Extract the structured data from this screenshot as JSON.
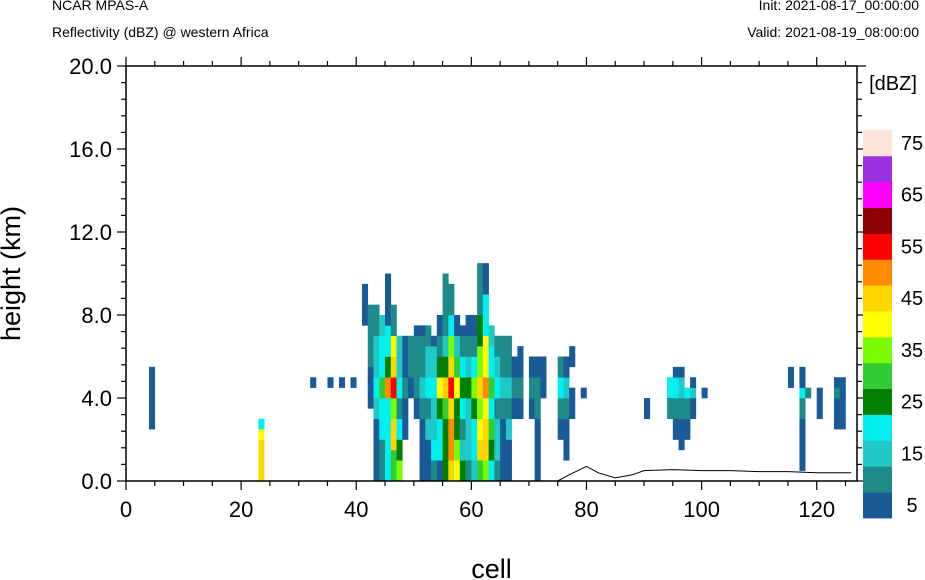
{
  "header": {
    "left_top": "NCAR MPAS-A",
    "left_bottom": "Reflectivity (dBZ) @ western Africa",
    "right_top": "Init: 2021-08-17_00:00:00",
    "right_bottom": "Valid: 2021-08-19_08:00:00"
  },
  "colors": {
    "palette": [
      "#1a5a96",
      "#1f8a8a",
      "#20c8c8",
      "#00f0f0",
      "#008000",
      "#32cd32",
      "#7cfc00",
      "#ffff00",
      "#ffd700",
      "#ff8c00",
      "#ff0000",
      "#8b0000",
      "#ff00ff",
      "#9b30e0",
      "#ffe4dc"
    ]
  },
  "chart_data": {
    "type": "heatmap",
    "title": "Reflectivity (dBZ) @ western Africa",
    "xlabel": "cell",
    "ylabel": "height (km)",
    "xlim": [
      0,
      127
    ],
    "ylim": [
      0,
      20
    ],
    "x_ticks": [
      "0",
      "20",
      "40",
      "60",
      "80",
      "100",
      "120"
    ],
    "y_ticks": [
      "0.0",
      "4.0",
      "8.0",
      "12.0",
      "16.0",
      "20.0"
    ],
    "colorbar": {
      "unit_label": "[dBZ]",
      "levels": [
        5,
        10,
        15,
        20,
        25,
        30,
        35,
        40,
        45,
        50,
        55,
        60,
        65,
        70,
        75
      ],
      "tick_labels": [
        "5",
        "15",
        "25",
        "35",
        "45",
        "55",
        "65",
        "75"
      ]
    },
    "terrain": [
      [
        0,
        0
      ],
      [
        75,
        0
      ],
      [
        77,
        0.3
      ],
      [
        80,
        0.7
      ],
      [
        82,
        0.4
      ],
      [
        85,
        0.15
      ],
      [
        88,
        0.3
      ],
      [
        90,
        0.5
      ],
      [
        95,
        0.55
      ],
      [
        100,
        0.5
      ],
      [
        105,
        0.5
      ],
      [
        110,
        0.45
      ],
      [
        115,
        0.45
      ],
      [
        120,
        0.4
      ],
      [
        126,
        0.4
      ]
    ],
    "cells": [
      [
        4,
        2.5,
        3.5,
        5
      ],
      [
        4,
        3.5,
        4.5,
        5
      ],
      [
        4,
        4.5,
        5.5,
        5
      ],
      [
        23,
        0,
        2,
        45
      ],
      [
        23,
        2,
        2.5,
        40
      ],
      [
        23,
        2.5,
        3,
        20
      ],
      [
        32,
        4.5,
        5,
        5
      ],
      [
        35,
        4.5,
        5,
        5
      ],
      [
        37,
        4.5,
        5,
        5
      ],
      [
        39,
        4.5,
        5,
        5
      ],
      [
        41,
        7.5,
        9.5,
        5
      ],
      [
        42,
        5.5,
        8.5,
        10
      ],
      [
        42,
        3.5,
        5.5,
        5
      ],
      [
        43,
        0,
        3,
        5
      ],
      [
        43,
        3,
        4,
        15
      ],
      [
        43,
        4,
        5,
        20
      ],
      [
        43,
        5,
        7,
        15
      ],
      [
        43,
        7,
        8.5,
        10
      ],
      [
        44,
        0,
        2,
        10
      ],
      [
        44,
        2,
        4,
        20
      ],
      [
        44,
        4,
        5,
        30
      ],
      [
        44,
        5,
        7,
        20
      ],
      [
        44,
        7,
        8,
        15
      ],
      [
        45,
        0,
        1.5,
        20
      ],
      [
        45,
        1.5,
        4,
        20
      ],
      [
        45,
        4,
        5,
        50
      ],
      [
        45,
        5,
        6,
        25
      ],
      [
        45,
        6,
        7.5,
        20
      ],
      [
        45,
        7.5,
        10,
        5
      ],
      [
        46,
        0,
        1.5,
        30
      ],
      [
        46,
        1.5,
        3,
        45
      ],
      [
        46,
        3,
        4,
        35
      ],
      [
        46,
        4,
        5,
        55
      ],
      [
        46,
        5,
        6,
        45
      ],
      [
        46,
        6,
        7,
        40
      ],
      [
        46,
        7,
        8.5,
        10
      ],
      [
        47,
        0,
        1,
        35
      ],
      [
        47,
        1,
        2,
        25
      ],
      [
        47,
        2,
        3,
        20
      ],
      [
        47,
        3,
        4,
        10
      ],
      [
        47,
        4,
        5,
        20
      ],
      [
        47,
        5,
        7,
        15
      ],
      [
        48,
        2,
        4,
        5
      ],
      [
        48,
        4,
        5,
        10
      ],
      [
        48,
        5,
        7,
        5
      ],
      [
        49,
        4,
        5,
        5
      ],
      [
        49,
        5,
        7,
        10
      ],
      [
        50,
        3,
        4,
        5
      ],
      [
        50,
        4,
        5,
        10
      ],
      [
        50,
        5,
        7,
        10
      ],
      [
        50,
        7,
        7.5,
        5
      ],
      [
        51,
        0,
        3,
        5
      ],
      [
        51,
        3,
        4,
        10
      ],
      [
        51,
        4,
        5,
        15
      ],
      [
        51,
        5,
        7,
        10
      ],
      [
        51,
        7,
        7.5,
        5
      ],
      [
        52,
        0,
        2,
        5
      ],
      [
        52,
        2,
        3,
        15
      ],
      [
        52,
        3,
        4,
        10
      ],
      [
        52,
        4,
        5,
        20
      ],
      [
        52,
        5,
        6.5,
        15
      ],
      [
        52,
        6.5,
        7.5,
        10
      ],
      [
        53,
        0,
        1,
        10
      ],
      [
        53,
        1,
        2,
        20
      ],
      [
        53,
        2,
        4,
        15
      ],
      [
        53,
        4,
        5,
        20
      ],
      [
        53,
        5,
        6.5,
        15
      ],
      [
        53,
        6.5,
        7,
        5
      ],
      [
        54,
        0,
        1,
        5
      ],
      [
        54,
        1,
        3,
        20
      ],
      [
        54,
        3,
        4,
        25
      ],
      [
        54,
        4,
        5,
        40
      ],
      [
        54,
        5,
        6,
        25
      ],
      [
        54,
        6,
        7,
        10
      ],
      [
        54,
        7,
        8,
        5
      ],
      [
        55,
        0,
        1,
        25
      ],
      [
        55,
        1,
        3,
        25
      ],
      [
        55,
        3,
        4,
        30
      ],
      [
        55,
        4,
        5,
        45
      ],
      [
        55,
        5,
        6,
        25
      ],
      [
        55,
        6,
        7,
        15
      ],
      [
        55,
        7,
        10,
        10
      ],
      [
        56,
        0,
        1,
        45
      ],
      [
        56,
        1,
        3,
        50
      ],
      [
        56,
        3,
        4,
        45
      ],
      [
        56,
        4,
        5,
        55
      ],
      [
        56,
        5,
        6,
        45
      ],
      [
        56,
        6,
        7,
        35
      ],
      [
        56,
        7,
        8,
        20
      ],
      [
        56,
        8,
        9.5,
        10
      ],
      [
        57,
        0,
        1,
        40
      ],
      [
        57,
        1,
        2,
        35
      ],
      [
        57,
        2,
        4,
        25
      ],
      [
        57,
        4,
        5,
        40
      ],
      [
        57,
        5,
        6,
        30
      ],
      [
        57,
        6,
        7,
        15
      ],
      [
        57,
        7,
        8,
        5
      ],
      [
        58,
        0,
        1,
        25
      ],
      [
        58,
        1,
        2,
        15
      ],
      [
        58,
        2,
        3,
        10
      ],
      [
        58,
        3,
        4,
        20
      ],
      [
        58,
        4,
        5,
        25
      ],
      [
        58,
        5,
        6,
        20
      ],
      [
        58,
        6,
        7,
        10
      ],
      [
        58,
        7,
        7.5,
        5
      ],
      [
        59,
        0,
        1,
        10
      ],
      [
        59,
        1,
        3,
        15
      ],
      [
        59,
        3,
        4,
        15
      ],
      [
        59,
        4,
        5,
        25
      ],
      [
        59,
        5,
        6,
        15
      ],
      [
        59,
        6,
        7,
        10
      ],
      [
        59,
        7,
        8,
        5
      ],
      [
        60,
        0,
        1,
        15
      ],
      [
        60,
        1,
        3,
        20
      ],
      [
        60,
        3,
        4,
        25
      ],
      [
        60,
        4,
        5,
        35
      ],
      [
        60,
        5,
        6,
        20
      ],
      [
        60,
        6,
        7,
        10
      ],
      [
        60,
        7,
        8,
        5
      ],
      [
        61,
        0,
        1,
        30
      ],
      [
        61,
        1,
        2,
        45
      ],
      [
        61,
        2,
        3,
        40
      ],
      [
        61,
        3,
        4,
        35
      ],
      [
        61,
        4,
        5,
        45
      ],
      [
        61,
        5,
        6.5,
        35
      ],
      [
        61,
        6.5,
        8,
        25
      ],
      [
        61,
        8,
        10.5,
        10
      ],
      [
        62,
        0,
        1,
        35
      ],
      [
        62,
        1,
        3,
        45
      ],
      [
        62,
        3,
        4,
        40
      ],
      [
        62,
        4,
        5,
        50
      ],
      [
        62,
        5,
        7,
        40
      ],
      [
        62,
        7,
        9,
        20
      ],
      [
        62,
        9,
        10.5,
        5
      ],
      [
        63,
        0,
        1,
        20
      ],
      [
        63,
        1,
        2,
        25
      ],
      [
        63,
        2,
        3,
        30
      ],
      [
        63,
        3,
        4,
        20
      ],
      [
        63,
        4,
        5,
        30
      ],
      [
        63,
        5,
        6.5,
        20
      ],
      [
        63,
        6.5,
        7.5,
        15
      ],
      [
        64,
        0,
        1,
        10
      ],
      [
        64,
        1,
        3,
        15
      ],
      [
        64,
        3,
        4,
        10
      ],
      [
        64,
        4,
        5,
        20
      ],
      [
        64,
        5,
        6,
        15
      ],
      [
        64,
        6,
        7,
        10
      ],
      [
        65,
        0,
        3,
        5
      ],
      [
        65,
        3,
        4,
        10
      ],
      [
        65,
        4,
        5,
        15
      ],
      [
        65,
        5,
        7,
        10
      ],
      [
        66,
        0,
        2,
        5
      ],
      [
        66,
        2,
        3,
        15
      ],
      [
        66,
        3,
        4,
        10
      ],
      [
        66,
        4,
        5,
        15
      ],
      [
        66,
        5,
        7,
        10
      ],
      [
        67,
        3,
        4,
        5
      ],
      [
        67,
        4,
        5,
        10
      ],
      [
        67,
        5,
        6,
        5
      ],
      [
        68,
        3,
        4,
        5
      ],
      [
        68,
        4,
        5,
        10
      ],
      [
        68,
        5,
        6.5,
        5
      ],
      [
        70,
        3,
        4,
        5
      ],
      [
        70,
        4,
        5,
        10
      ],
      [
        70,
        5,
        6,
        5
      ],
      [
        71,
        0,
        3,
        5
      ],
      [
        71,
        3,
        4,
        10
      ],
      [
        71,
        4,
        5,
        10
      ],
      [
        71,
        5,
        6,
        5
      ],
      [
        72,
        4,
        4.5,
        5
      ],
      [
        72,
        4.5,
        6,
        5
      ],
      [
        75,
        2,
        3,
        5
      ],
      [
        75,
        3,
        4,
        10
      ],
      [
        75,
        4,
        5,
        20
      ],
      [
        75,
        5,
        6,
        10
      ],
      [
        76,
        1,
        3,
        5
      ],
      [
        76,
        3,
        4,
        10
      ],
      [
        76,
        4,
        5,
        15
      ],
      [
        76,
        5,
        6,
        5
      ],
      [
        77,
        3,
        4.5,
        5
      ],
      [
        77,
        5.5,
        6.5,
        5
      ],
      [
        79,
        4,
        4.5,
        5
      ],
      [
        90,
        3,
        4,
        5
      ],
      [
        94,
        4,
        5,
        20
      ],
      [
        94,
        3,
        4,
        10
      ],
      [
        95,
        2,
        3,
        5
      ],
      [
        95,
        3,
        4,
        10
      ],
      [
        95,
        4,
        5,
        20
      ],
      [
        95,
        5,
        5.5,
        5
      ],
      [
        96,
        1.5,
        3,
        5
      ],
      [
        96,
        3,
        4,
        10
      ],
      [
        96,
        4,
        5,
        15
      ],
      [
        96,
        5,
        5.5,
        5
      ],
      [
        97,
        2,
        3,
        5
      ],
      [
        97,
        3,
        4,
        10
      ],
      [
        97,
        4,
        4.5,
        20
      ],
      [
        98,
        3,
        4,
        5
      ],
      [
        98,
        4,
        4.5,
        15
      ],
      [
        98,
        4.5,
        5,
        5
      ],
      [
        100,
        4,
        4.5,
        5
      ],
      [
        115,
        4.5,
        5.5,
        5
      ],
      [
        117,
        0.5,
        3,
        5
      ],
      [
        117,
        3,
        4,
        10
      ],
      [
        117,
        4,
        4.5,
        20
      ],
      [
        117,
        4.5,
        5.5,
        5
      ],
      [
        118,
        4,
        4.5,
        10
      ],
      [
        120,
        3,
        4,
        5
      ],
      [
        120,
        4,
        4.5,
        5
      ],
      [
        123,
        2.5,
        4,
        5
      ],
      [
        123,
        4,
        4.5,
        10
      ],
      [
        123,
        4.5,
        5,
        5
      ],
      [
        124,
        2.5,
        4,
        5
      ],
      [
        124,
        4,
        4.5,
        5
      ],
      [
        124,
        4.5,
        5,
        5
      ]
    ]
  }
}
